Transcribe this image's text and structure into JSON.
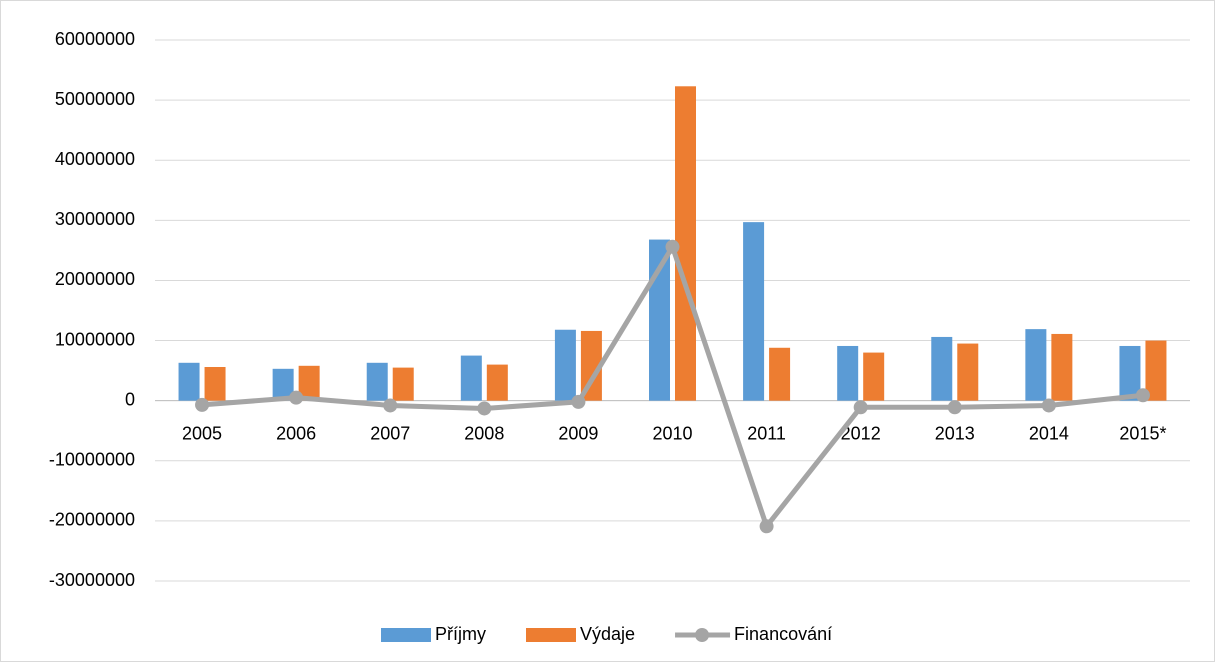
{
  "chart_data": {
    "type": "bar",
    "categories": [
      "2005",
      "2006",
      "2007",
      "2008",
      "2009",
      "2010",
      "2011",
      "2012",
      "2013",
      "2014",
      "2015*"
    ],
    "series": [
      {
        "name": "Příjmy",
        "color": "#5b9bd5",
        "values": [
          6300000,
          5300000,
          6300000,
          7500000,
          11800000,
          26800000,
          29700000,
          9100000,
          10600000,
          11900000,
          9100000
        ]
      },
      {
        "name": "Výdaje",
        "color": "#ed7d31",
        "values": [
          5600000,
          5800000,
          5500000,
          6000000,
          11600000,
          52300000,
          8800000,
          8000000,
          9500000,
          11100000,
          10000000
        ]
      },
      {
        "name": "Financování",
        "color": "#a5a5a5",
        "type": "line",
        "values": [
          -700000,
          500000,
          -800000,
          -1300000,
          -200000,
          25600000,
          -20900000,
          -1100000,
          -1100000,
          -800000,
          900000
        ]
      }
    ],
    "ylim": [
      -30000000,
      60000000
    ],
    "yticks": [
      -30000000,
      -20000000,
      -10000000,
      0,
      10000000,
      20000000,
      30000000,
      40000000,
      50000000,
      60000000
    ],
    "grid": true,
    "legend": "bottom"
  }
}
